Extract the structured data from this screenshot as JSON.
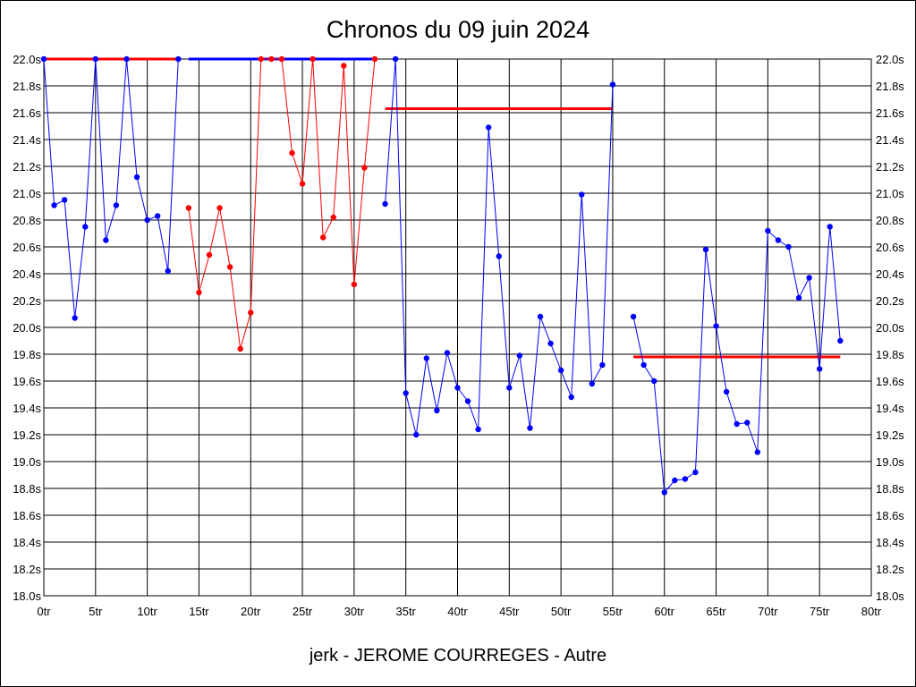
{
  "chart_data": {
    "type": "line",
    "title": "Chronos du 09 juin 2024",
    "footer": "jerk - JEROME COURREGES - Autre",
    "x_ticks": [
      "0tr",
      "5tr",
      "10tr",
      "15tr",
      "20tr",
      "25tr",
      "30tr",
      "35tr",
      "40tr",
      "45tr",
      "50tr",
      "55tr",
      "60tr",
      "65tr",
      "70tr",
      "75tr",
      "80tr"
    ],
    "y_ticks": [
      "18.0s",
      "18.2s",
      "18.4s",
      "18.6s",
      "18.8s",
      "19.0s",
      "19.2s",
      "19.4s",
      "19.6s",
      "19.8s",
      "20.0s",
      "20.2s",
      "20.4s",
      "20.6s",
      "20.8s",
      "21.0s",
      "21.2s",
      "21.4s",
      "21.6s",
      "21.8s",
      "22.0s"
    ],
    "xlim": [
      0,
      80
    ],
    "ylim": [
      18.0,
      22.0
    ],
    "grid": true,
    "colors": {
      "blue": "#0000ff",
      "red": "#ff0000",
      "grid": "#000000"
    },
    "series": [
      {
        "color": "blue",
        "points": [
          [
            0,
            22.0
          ],
          [
            1,
            20.91
          ],
          [
            2,
            20.95
          ],
          [
            3,
            20.07
          ],
          [
            4,
            20.75
          ],
          [
            5,
            22.0
          ],
          [
            6,
            20.65
          ],
          [
            7,
            20.91
          ],
          [
            8,
            22.0
          ],
          [
            9,
            21.12
          ],
          [
            10,
            20.8
          ],
          [
            11,
            20.83
          ],
          [
            12,
            20.42
          ],
          [
            13,
            22.0
          ]
        ]
      },
      {
        "color": "red",
        "points": [
          [
            14,
            20.89
          ],
          [
            15,
            20.26
          ],
          [
            16,
            20.54
          ],
          [
            17,
            20.89
          ],
          [
            18,
            20.45
          ],
          [
            19,
            19.84
          ],
          [
            20,
            20.11
          ],
          [
            21,
            22.0
          ],
          [
            22,
            22.0
          ],
          [
            23,
            22.0
          ],
          [
            24,
            21.3
          ],
          [
            25,
            21.07
          ],
          [
            26,
            22.0
          ],
          [
            27,
            20.67
          ],
          [
            28,
            20.82
          ],
          [
            29,
            21.95
          ],
          [
            30,
            20.32
          ],
          [
            31,
            21.19
          ],
          [
            32,
            22.0
          ]
        ]
      },
      {
        "color": "blue",
        "points": [
          [
            33,
            20.92
          ],
          [
            34,
            22.0
          ],
          [
            35,
            19.51
          ],
          [
            36,
            19.2
          ],
          [
            37,
            19.77
          ],
          [
            38,
            19.38
          ],
          [
            39,
            19.81
          ],
          [
            40,
            19.55
          ],
          [
            41,
            19.45
          ],
          [
            42,
            19.24
          ],
          [
            43,
            21.49
          ],
          [
            44,
            20.53
          ],
          [
            45,
            19.55
          ],
          [
            46,
            19.79
          ],
          [
            47,
            19.25
          ],
          [
            48,
            20.08
          ],
          [
            49,
            19.88
          ],
          [
            50,
            19.68
          ],
          [
            51,
            19.48
          ],
          [
            52,
            20.99
          ],
          [
            53,
            19.58
          ],
          [
            54,
            19.72
          ],
          [
            55,
            21.81
          ]
        ]
      },
      {
        "color": "blue",
        "points": [
          [
            57,
            20.08
          ],
          [
            58,
            19.72
          ],
          [
            59,
            19.6
          ],
          [
            60,
            18.77
          ],
          [
            61,
            18.86
          ],
          [
            62,
            18.87
          ],
          [
            63,
            18.92
          ],
          [
            64,
            20.58
          ],
          [
            65,
            20.01
          ],
          [
            66,
            19.52
          ],
          [
            67,
            19.28
          ],
          [
            68,
            19.29
          ],
          [
            69,
            19.07
          ],
          [
            70,
            20.72
          ],
          [
            71,
            20.65
          ],
          [
            72,
            20.6
          ],
          [
            73,
            20.22
          ],
          [
            74,
            20.37
          ],
          [
            75,
            19.69
          ],
          [
            76,
            20.75
          ],
          [
            77,
            19.9
          ]
        ]
      }
    ],
    "reference_lines": [
      {
        "color": "red",
        "x": [
          0,
          13
        ],
        "y": 22.0
      },
      {
        "color": "blue",
        "x": [
          14,
          32
        ],
        "y": 22.0
      },
      {
        "color": "red",
        "x": [
          33,
          55
        ],
        "y": 21.63
      },
      {
        "color": "red",
        "x": [
          57,
          77
        ],
        "y": 19.78
      }
    ]
  }
}
